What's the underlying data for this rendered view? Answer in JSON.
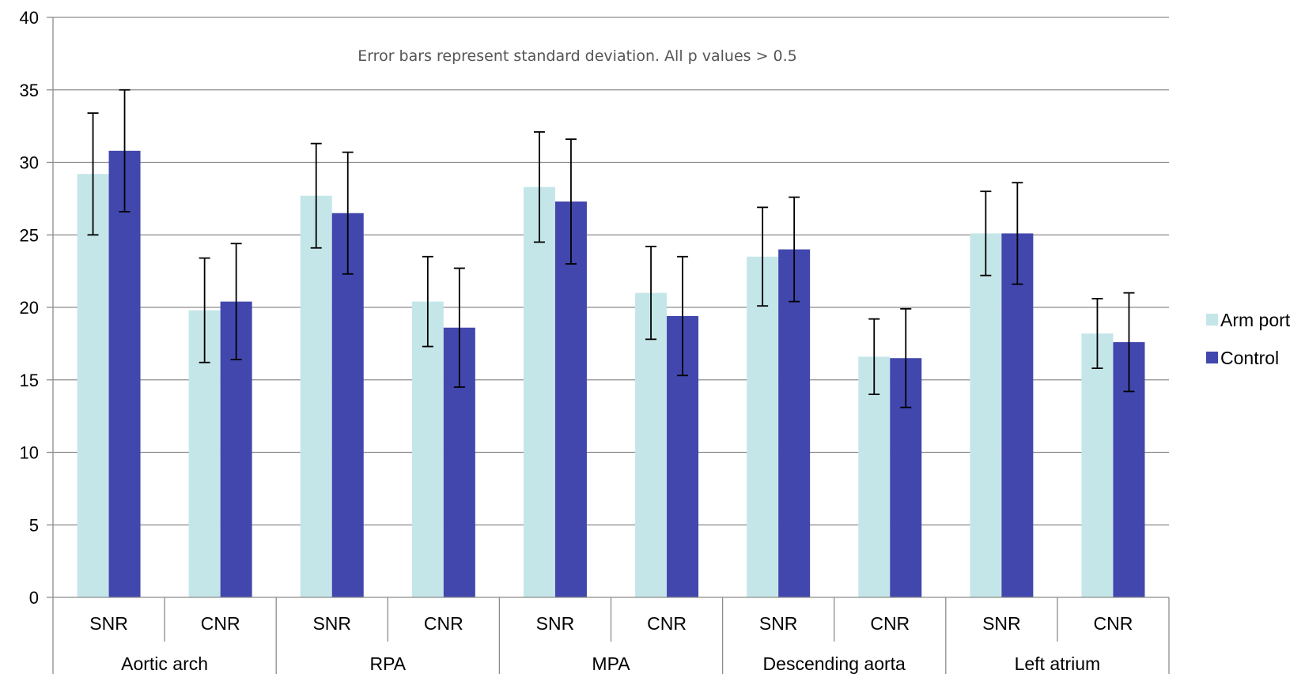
{
  "chart_data": {
    "type": "bar",
    "annotation": "Error bars represent standard deviation.  All p values > 0.5",
    "ylim": [
      0,
      40
    ],
    "yticks": [
      0,
      5,
      10,
      15,
      20,
      25,
      30,
      35,
      40
    ],
    "grid": true,
    "legend_position": "right",
    "groups": [
      "Aortic arch",
      "RPA",
      "MPA",
      "Descending aorta",
      "Left atrium"
    ],
    "subcategories": [
      "SNR",
      "CNR",
      "SNR",
      "CNR",
      "SNR",
      "CNR",
      "SNR",
      "CNR",
      "SNR",
      "CNR"
    ],
    "series": [
      {
        "name": "Arm port",
        "color": "#c5e6e9",
        "values": [
          29.2,
          19.8,
          27.7,
          20.4,
          28.3,
          21.0,
          23.5,
          16.6,
          25.1,
          18.2
        ],
        "std": [
          4.2,
          3.6,
          3.6,
          3.1,
          3.8,
          3.2,
          3.4,
          2.6,
          2.9,
          2.4
        ]
      },
      {
        "name": "Control",
        "color": "#4247ad",
        "values": [
          30.8,
          20.4,
          26.5,
          18.6,
          27.3,
          19.4,
          24.0,
          16.5,
          25.1,
          17.6
        ],
        "std": [
          4.2,
          4.0,
          4.2,
          4.1,
          4.3,
          4.1,
          3.6,
          3.4,
          3.5,
          3.4
        ]
      }
    ]
  }
}
